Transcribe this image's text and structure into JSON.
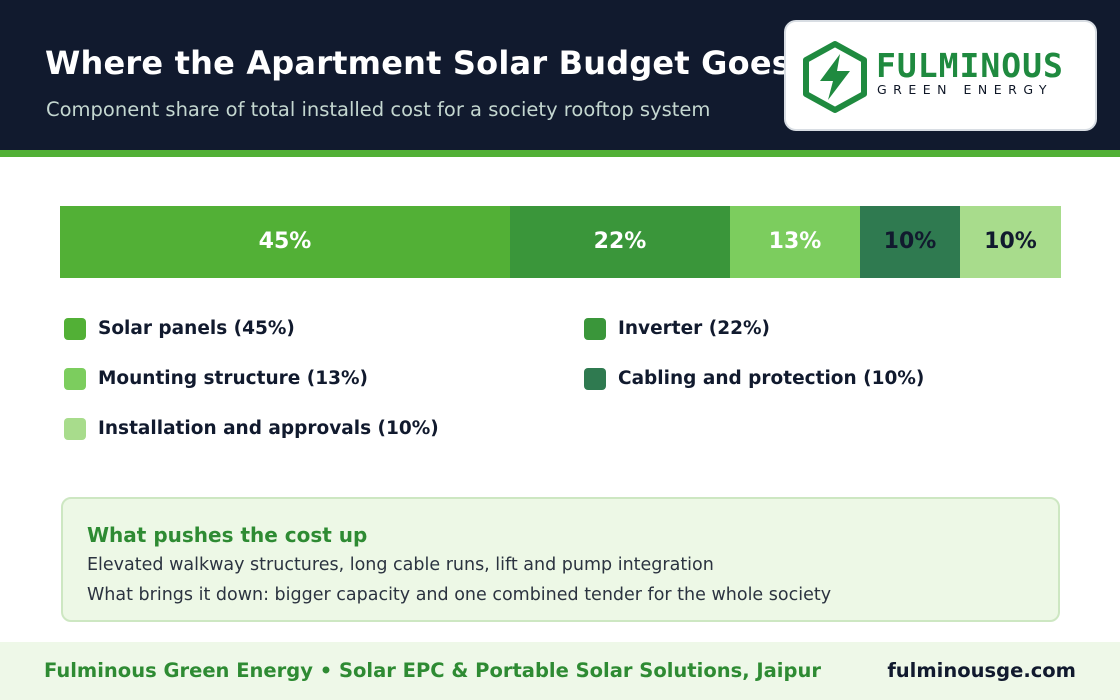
{
  "header": {
    "title": "Where the Apartment Solar Budget Goes",
    "subtitle": "Component share of total installed cost for a society rooftop system"
  },
  "brand": {
    "name": "FULMINOUS",
    "tagline": "GREEN ENERGY",
    "icon": "lightning-hexagon-icon"
  },
  "chart_data": {
    "type": "bar",
    "orientation": "horizontal-stacked-100",
    "title": "Where the Apartment Solar Budget Goes",
    "subtitle": "Component share of total installed cost for a society rooftop system",
    "unit": "%",
    "categories": [
      "Solar panels",
      "Inverter",
      "Mounting structure",
      "Cabling and protection",
      "Installation and approvals"
    ],
    "values": [
      45,
      22,
      13,
      10,
      10
    ],
    "data_labels": [
      "45%",
      "22%",
      "13%",
      "10%",
      "10%"
    ],
    "legend_labels": [
      "Solar panels  (45%)",
      "Inverter  (22%)",
      "Mounting structure  (13%)",
      "Cabling and protection  (10%)",
      "Installation and approvals  (10%)"
    ],
    "colors": [
      "#52b036",
      "#3a963a",
      "#7ccd5e",
      "#2f7a50",
      "#a8dc8c"
    ],
    "label_colors": [
      "#ffffff",
      "#ffffff",
      "#ffffff",
      "#111a2e",
      "#111a2e"
    ],
    "legend_placement": "bottom",
    "grid": false
  },
  "note": {
    "title": "What pushes the cost up",
    "line1": "Elevated walkway structures, long cable runs, lift and pump integration",
    "line2": "What brings it down: bigger capacity and one combined tender for the whole society"
  },
  "footer": {
    "left": "Fulminous Green Energy  •  Solar EPC & Portable Solar Solutions, Jaipur",
    "right": "fulminousge.com"
  },
  "colors": {
    "header_bg": "#111a2e",
    "accent_green": "#52b036",
    "note_bg": "#edf8e6",
    "footer_bg": "#eef8e8"
  }
}
